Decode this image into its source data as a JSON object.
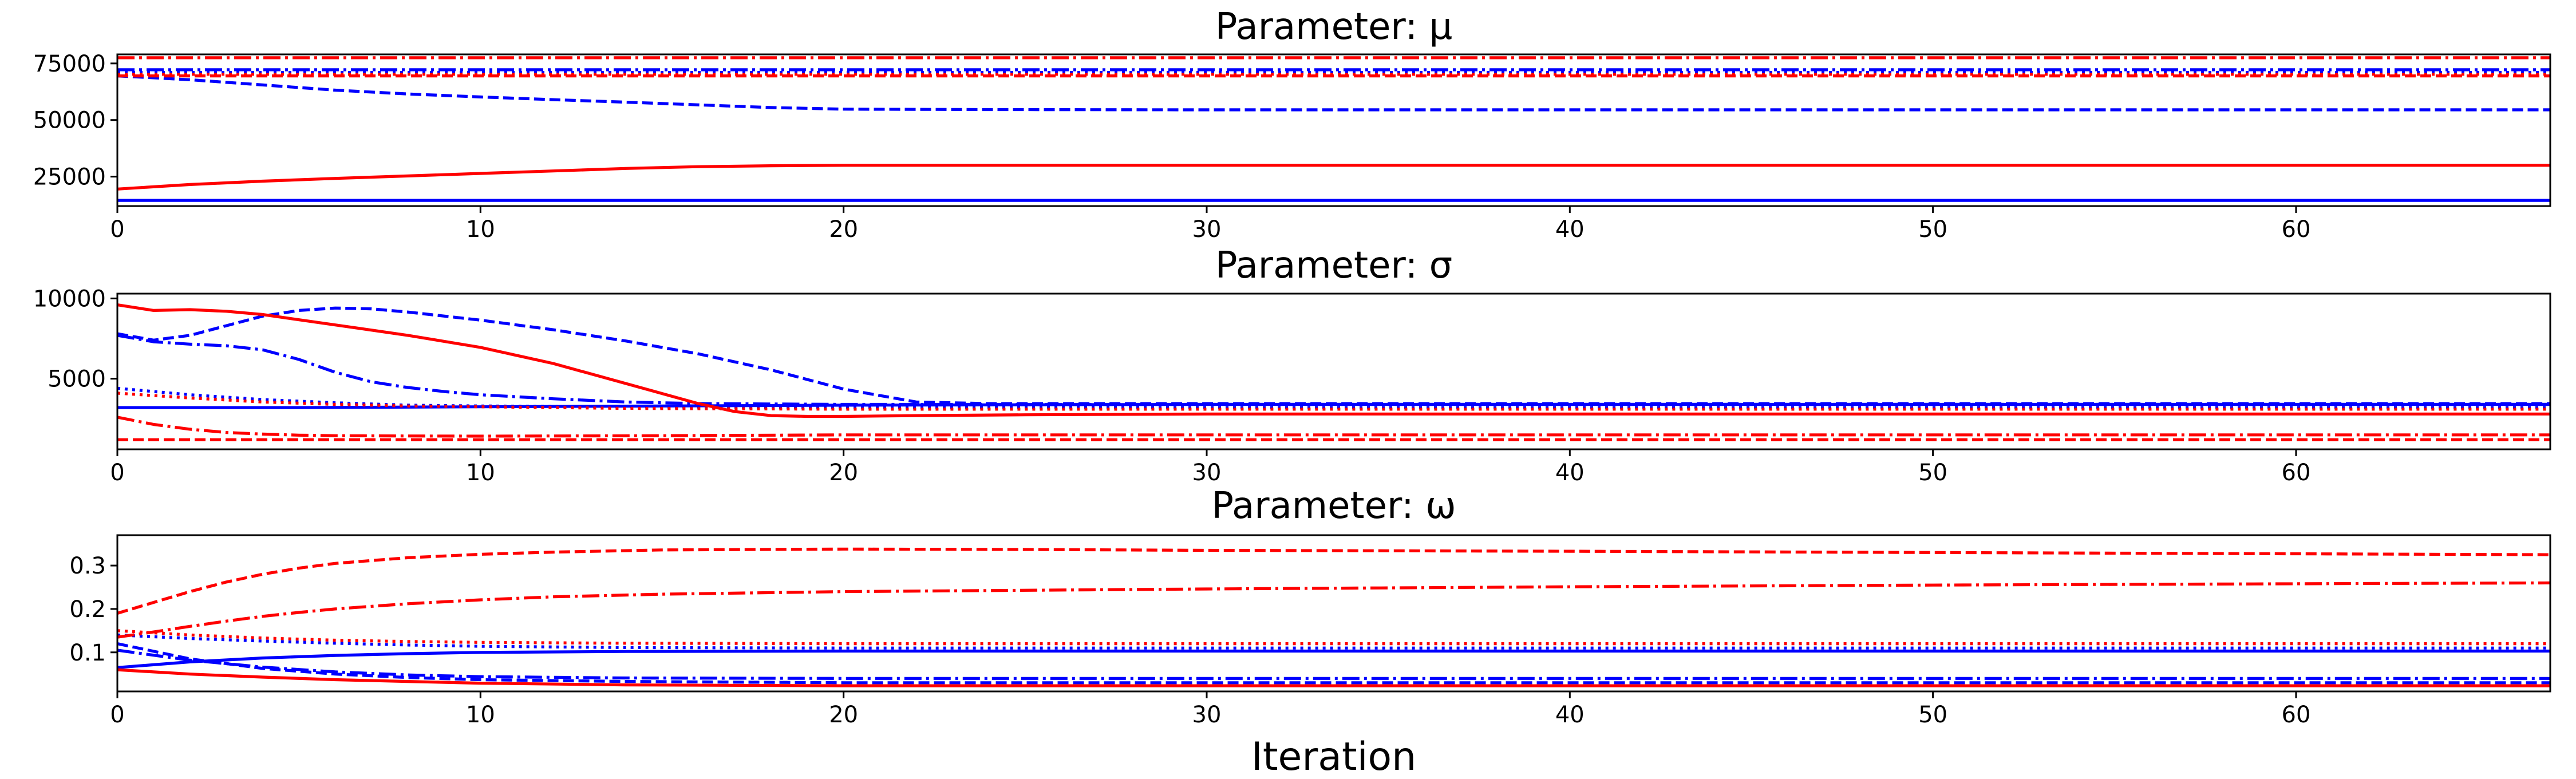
{
  "chart_data": [
    {
      "type": "line",
      "title": "Parameter: μ",
      "xlabel": "",
      "ylabel": "",
      "xlim": [
        0,
        67
      ],
      "ylim": [
        12000,
        79000
      ],
      "xticks": [
        0,
        10,
        20,
        30,
        40,
        50,
        60
      ],
      "xtick_labels": [
        "0",
        "10",
        "20",
        "30",
        "40",
        "50",
        "60"
      ],
      "yticks": [
        25000,
        50000,
        75000
      ],
      "ytick_labels": [
        "25000",
        "50000",
        "75000"
      ],
      "grid": false,
      "series": [
        {
          "color": "#0000ff",
          "dash": "solid",
          "x": [
            0,
            67
          ],
          "y": [
            14500,
            14500
          ]
        },
        {
          "color": "#0000ff",
          "dash": "dashed",
          "x": [
            0,
            2,
            4,
            6,
            8,
            10,
            12,
            14,
            16,
            18,
            20,
            24,
            30,
            40,
            67
          ],
          "y": [
            69500,
            67800,
            65500,
            63200,
            61500,
            60200,
            59000,
            57900,
            56700,
            55500,
            54800,
            54600,
            54500,
            54500,
            54500
          ]
        },
        {
          "color": "#0000ff",
          "dash": "dashdot",
          "x": [
            0,
            67
          ],
          "y": [
            72200,
            72200
          ]
        },
        {
          "color": "#0000ff",
          "dash": "dotted",
          "x": [
            0,
            67
          ],
          "y": [
            71000,
            71000
          ]
        },
        {
          "color": "#ff0000",
          "dash": "solid",
          "x": [
            0,
            2,
            4,
            6,
            8,
            10,
            12,
            14,
            16,
            18,
            20,
            25,
            67
          ],
          "y": [
            19500,
            21500,
            23000,
            24200,
            25300,
            26400,
            27500,
            28600,
            29400,
            29800,
            30000,
            30000,
            30000
          ]
        },
        {
          "color": "#ff0000",
          "dash": "dashed",
          "x": [
            0,
            67
          ],
          "y": [
            69500,
            69500
          ]
        },
        {
          "color": "#ff0000",
          "dash": "dashdot",
          "x": [
            0,
            67
          ],
          "y": [
            77500,
            77500
          ]
        },
        {
          "color": "#ff0000",
          "dash": "dotted",
          "x": [
            0,
            67
          ],
          "y": [
            70200,
            70200
          ]
        }
      ]
    },
    {
      "type": "line",
      "title": "Parameter: σ",
      "xlabel": "",
      "ylabel": "",
      "xlim": [
        0,
        67
      ],
      "ylim": [
        600,
        10300
      ],
      "xticks": [
        0,
        10,
        20,
        30,
        40,
        50,
        60
      ],
      "xtick_labels": [
        "0",
        "10",
        "20",
        "30",
        "40",
        "50",
        "60"
      ],
      "yticks": [
        5000,
        10000
      ],
      "ytick_labels": [
        "5000",
        "10000"
      ],
      "grid": false,
      "series": [
        {
          "color": "#0000ff",
          "dash": "solid",
          "x": [
            0,
            5,
            10,
            15,
            20,
            30,
            67
          ],
          "y": [
            3200,
            3200,
            3250,
            3300,
            3350,
            3400,
            3400
          ]
        },
        {
          "color": "#0000ff",
          "dash": "dashed",
          "x": [
            0,
            1,
            2,
            3,
            4,
            5,
            6,
            7,
            8,
            10,
            12,
            14,
            16,
            18,
            20,
            22,
            24,
            30,
            67
          ],
          "y": [
            7800,
            7400,
            7700,
            8300,
            8900,
            9250,
            9400,
            9350,
            9150,
            8650,
            8050,
            7350,
            6550,
            5550,
            4350,
            3550,
            3450,
            3450,
            3450
          ]
        },
        {
          "color": "#0000ff",
          "dash": "dashdot",
          "x": [
            0,
            1,
            2,
            3,
            4,
            5,
            6,
            7,
            8,
            9,
            10,
            12,
            14,
            16,
            20,
            67
          ],
          "y": [
            7700,
            7300,
            7150,
            7050,
            6800,
            6200,
            5400,
            4800,
            4450,
            4200,
            4000,
            3750,
            3550,
            3450,
            3400,
            3400
          ]
        },
        {
          "color": "#0000ff",
          "dash": "dotted",
          "x": [
            0,
            2,
            4,
            6,
            8,
            10,
            14,
            20,
            67
          ],
          "y": [
            4400,
            4000,
            3700,
            3500,
            3350,
            3300,
            3250,
            3200,
            3200
          ]
        },
        {
          "color": "#ff0000",
          "dash": "solid",
          "x": [
            0,
            1,
            2,
            3,
            4,
            6,
            8,
            10,
            12,
            14,
            16,
            17,
            18,
            19,
            20,
            22,
            25,
            30,
            67
          ],
          "y": [
            9600,
            9250,
            9300,
            9200,
            9000,
            8350,
            7700,
            6950,
            5950,
            4700,
            3450,
            2950,
            2700,
            2650,
            2650,
            2700,
            2750,
            2800,
            2800
          ]
        },
        {
          "color": "#ff0000",
          "dash": "dashed",
          "x": [
            0,
            67
          ],
          "y": [
            1200,
            1200
          ]
        },
        {
          "color": "#ff0000",
          "dash": "dashdot",
          "x": [
            0,
            1,
            2,
            3,
            4,
            5,
            6,
            8,
            10,
            15,
            20,
            67
          ],
          "y": [
            2600,
            2150,
            1850,
            1650,
            1550,
            1480,
            1450,
            1430,
            1420,
            1450,
            1500,
            1500
          ]
        },
        {
          "color": "#ff0000",
          "dash": "dotted",
          "x": [
            0,
            2,
            4,
            6,
            8,
            10,
            14,
            20,
            67
          ],
          "y": [
            4100,
            3800,
            3550,
            3400,
            3300,
            3250,
            3150,
            3100,
            3100
          ]
        }
      ]
    },
    {
      "type": "line",
      "title": "Parameter: ω",
      "xlabel": "Iteration",
      "ylabel": "",
      "xlim": [
        0,
        67
      ],
      "ylim": [
        0.01,
        0.37
      ],
      "xticks": [
        0,
        10,
        20,
        30,
        40,
        50,
        60
      ],
      "xtick_labels": [
        "0",
        "10",
        "20",
        "30",
        "40",
        "50",
        "60"
      ],
      "yticks": [
        0.1,
        0.2,
        0.3
      ],
      "ytick_labels": [
        "0.1",
        "0.2",
        "0.3"
      ],
      "grid": false,
      "series": [
        {
          "color": "#0000ff",
          "dash": "solid",
          "x": [
            0,
            2,
            4,
            6,
            8,
            10,
            14,
            20,
            67
          ],
          "y": [
            0.065,
            0.078,
            0.087,
            0.093,
            0.097,
            0.1,
            0.102,
            0.103,
            0.103
          ]
        },
        {
          "color": "#0000ff",
          "dash": "dashed",
          "x": [
            0,
            2,
            4,
            6,
            8,
            10,
            14,
            20,
            67
          ],
          "y": [
            0.12,
            0.085,
            0.063,
            0.05,
            0.042,
            0.037,
            0.033,
            0.03,
            0.03
          ]
        },
        {
          "color": "#0000ff",
          "dash": "dashdot",
          "x": [
            0,
            2,
            4,
            6,
            8,
            10,
            14,
            20,
            67
          ],
          "y": [
            0.105,
            0.082,
            0.066,
            0.055,
            0.048,
            0.044,
            0.041,
            0.04,
            0.04
          ]
        },
        {
          "color": "#0000ff",
          "dash": "dotted",
          "x": [
            0,
            2,
            4,
            6,
            8,
            10,
            14,
            20,
            67
          ],
          "y": [
            0.14,
            0.132,
            0.126,
            0.121,
            0.117,
            0.114,
            0.111,
            0.11,
            0.11
          ]
        },
        {
          "color": "#ff0000",
          "dash": "solid",
          "x": [
            0,
            2,
            4,
            6,
            8,
            10,
            14,
            20,
            67
          ],
          "y": [
            0.06,
            0.05,
            0.043,
            0.037,
            0.033,
            0.029,
            0.025,
            0.023,
            0.023
          ]
        },
        {
          "color": "#ff0000",
          "dash": "dashed",
          "x": [
            0,
            1,
            2,
            3,
            4,
            5,
            6,
            8,
            10,
            12,
            15,
            20,
            25,
            30,
            40,
            50,
            67
          ],
          "y": [
            0.19,
            0.215,
            0.24,
            0.262,
            0.28,
            0.294,
            0.305,
            0.318,
            0.326,
            0.331,
            0.336,
            0.338,
            0.337,
            0.335,
            0.333,
            0.33,
            0.325
          ]
        },
        {
          "color": "#ff0000",
          "dash": "dashdot",
          "x": [
            0,
            1,
            2,
            3,
            4,
            5,
            6,
            8,
            10,
            12,
            15,
            20,
            30,
            40,
            50,
            60,
            67
          ],
          "y": [
            0.135,
            0.147,
            0.16,
            0.172,
            0.183,
            0.192,
            0.2,
            0.212,
            0.221,
            0.228,
            0.234,
            0.24,
            0.246,
            0.251,
            0.255,
            0.258,
            0.26
          ]
        },
        {
          "color": "#ff0000",
          "dash": "dotted",
          "x": [
            0,
            2,
            4,
            6,
            8,
            10,
            14,
            20,
            67
          ],
          "y": [
            0.15,
            0.14,
            0.133,
            0.128,
            0.125,
            0.123,
            0.121,
            0.12,
            0.12
          ]
        }
      ]
    }
  ]
}
